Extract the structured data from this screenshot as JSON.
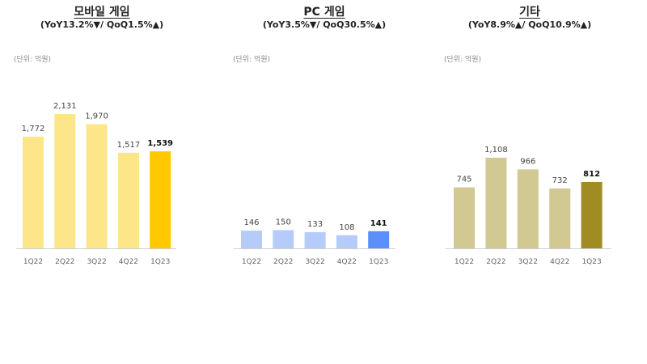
{
  "chart_data": [
    {
      "type": "bar",
      "title": "모바일 게임",
      "subtitle": "(YoY13.2%▼/ QoQ1.5%▲)",
      "unit": "(단위: 억원)",
      "categories": [
        "1Q22",
        "2Q22",
        "3Q22",
        "4Q22",
        "1Q23"
      ],
      "values": [
        1772,
        2131,
        1970,
        1517,
        1539
      ],
      "value_labels": [
        "1,772",
        "2,131",
        "1,970",
        "1,517",
        "1,539"
      ],
      "colors": [
        "#fde58a",
        "#fde58a",
        "#fde58a",
        "#fde58a",
        "#ffc800"
      ],
      "ymax": 2131,
      "grid": false,
      "legend": "none"
    },
    {
      "type": "bar",
      "title": "PC 게임",
      "subtitle": "(YoY3.5%▼/ QoQ30.5%▲)",
      "unit": "(단위: 억원)",
      "categories": [
        "1Q22",
        "2Q22",
        "3Q22",
        "4Q22",
        "1Q23"
      ],
      "values": [
        146,
        150,
        133,
        108,
        141
      ],
      "value_labels": [
        "146",
        "150",
        "133",
        "108",
        "141"
      ],
      "colors": [
        "#b5ccfb",
        "#b5ccfb",
        "#b5ccfb",
        "#b5ccfb",
        "#5b8ff9"
      ],
      "ymax": 1100,
      "grid": false,
      "legend": "none"
    },
    {
      "type": "bar",
      "title": "기타",
      "subtitle": "(YoY8.9%▲/ QoQ10.9%▲)",
      "unit": "(단위: 억원)",
      "categories": [
        "1Q22",
        "2Q22",
        "3Q22",
        "4Q22",
        "1Q23"
      ],
      "values": [
        745,
        1108,
        966,
        732,
        812
      ],
      "value_labels": [
        "745",
        "1,108",
        "966",
        "732",
        "812"
      ],
      "colors": [
        "#d2c892",
        "#d2c892",
        "#d2c892",
        "#d2c892",
        "#a08c23"
      ],
      "ymax": 1108,
      "grid": false,
      "legend": "none"
    }
  ]
}
